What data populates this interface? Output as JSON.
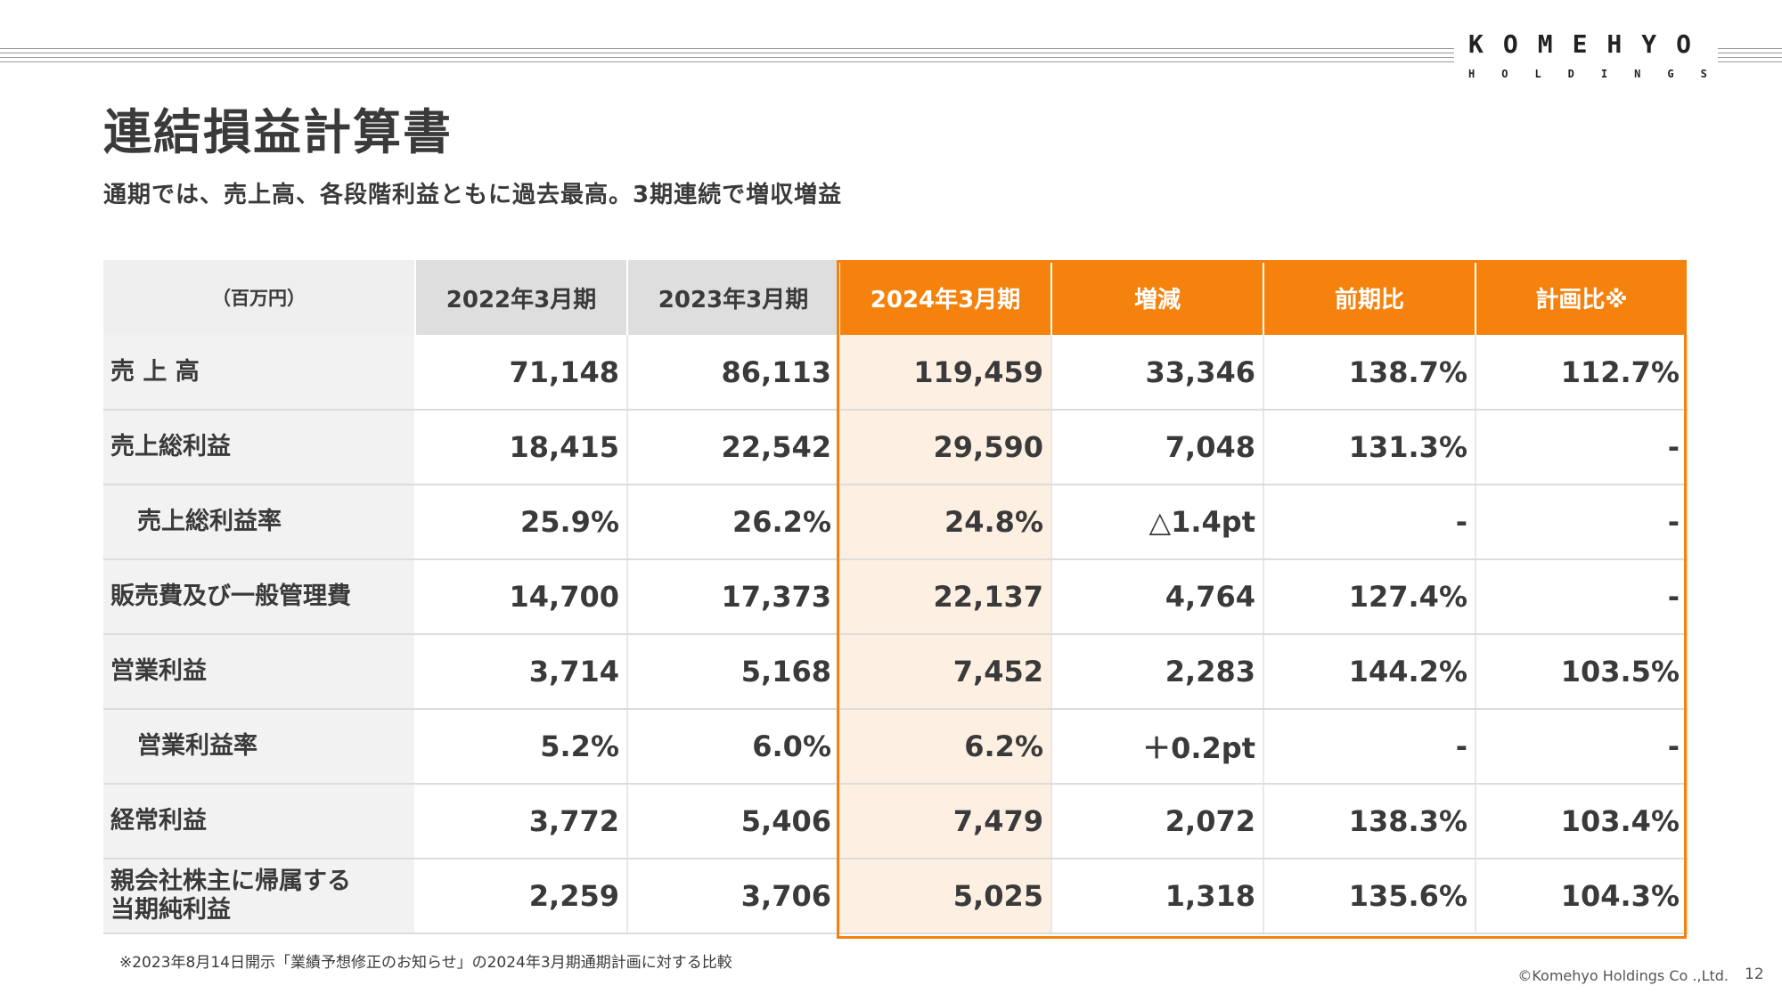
{
  "logo": {
    "main": "KOMEHYO",
    "sub": "HOLDINGS"
  },
  "title": "連結損益計算書",
  "subtitle": "通期では、売上高、各段階利益ともに過去最高。3期連続で増収増益",
  "table": {
    "unit": "（百万円）",
    "headers": [
      "2022年3月期",
      "2023年3月期",
      "2024年3月期",
      "増減",
      "前期比",
      "計画比※"
    ],
    "rows": [
      {
        "label": "売 上 高",
        "values": [
          "71,148",
          "86,113",
          "119,459",
          "33,346",
          "138.7%",
          "112.7%"
        ]
      },
      {
        "label": "売上総利益",
        "values": [
          "18,415",
          "22,542",
          "29,590",
          "7,048",
          "131.3%",
          "-"
        ]
      },
      {
        "label": "売上総利益率",
        "values": [
          "25.9%",
          "26.2%",
          "24.8%",
          "△1.4pt",
          "-",
          "-"
        ]
      },
      {
        "label": "販売費及び一般管理費",
        "values": [
          "14,700",
          "17,373",
          "22,137",
          "4,764",
          "127.4%",
          "-"
        ]
      },
      {
        "label": "営業利益",
        "values": [
          "3,714",
          "5,168",
          "7,452",
          "2,283",
          "144.2%",
          "103.5%"
        ]
      },
      {
        "label": "営業利益率",
        "values": [
          "5.2%",
          "6.0%",
          "6.2%",
          "＋0.2pt",
          "-",
          "-"
        ]
      },
      {
        "label": "経常利益",
        "values": [
          "3,772",
          "5,406",
          "7,479",
          "2,072",
          "138.3%",
          "103.4%"
        ]
      },
      {
        "label_line1": "親会社株主に帰属する",
        "label_line2": "当期純利益",
        "values": [
          "2,259",
          "3,706",
          "5,025",
          "1,318",
          "135.6%",
          "104.3%"
        ]
      }
    ]
  },
  "footnote": "※2023年8月14日開示「業績予想修正のお知らせ」の2024年3月期通期計画に対する比較",
  "copyright": "©Komehyo Holdings Co .,Ltd.",
  "page_number": "12",
  "colors": {
    "accent": "#f5820d",
    "accent_light": "#fdf0e2",
    "header_gray": "#dedede",
    "label_bg": "#f2f2f2"
  }
}
